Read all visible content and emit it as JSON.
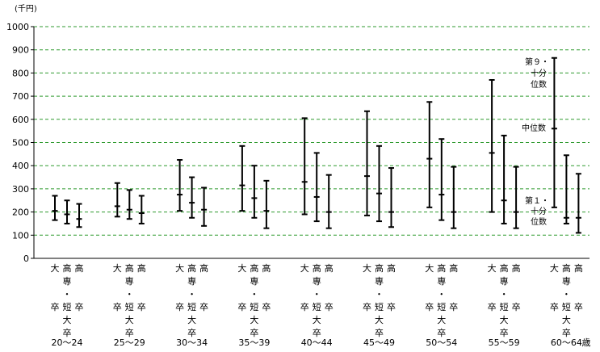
{
  "chart_data": {
    "type": "range",
    "unit_label": "(千円)",
    "age_suffix": "歳",
    "ylim": [
      0,
      1000
    ],
    "yticks": [
      0,
      100,
      200,
      300,
      400,
      500,
      600,
      700,
      800,
      900,
      1000
    ],
    "grid": true,
    "series_labels": [
      "大卒",
      "高専・短大卒",
      "高卒"
    ],
    "age_groups": [
      "20～24",
      "25～29",
      "30～34",
      "35～39",
      "40～44",
      "45～49",
      "50～54",
      "55～59",
      "60～64"
    ],
    "data": [
      [
        {
          "p10": 165,
          "median": 205,
          "p90": 270
        },
        {
          "p10": 150,
          "median": 190,
          "p90": 250
        },
        {
          "p10": 135,
          "median": 170,
          "p90": 235
        }
      ],
      [
        {
          "p10": 180,
          "median": 225,
          "p90": 325
        },
        {
          "p10": 170,
          "median": 210,
          "p90": 295
        },
        {
          "p10": 150,
          "median": 195,
          "p90": 270
        }
      ],
      [
        {
          "p10": 205,
          "median": 275,
          "p90": 425
        },
        {
          "p10": 175,
          "median": 240,
          "p90": 350
        },
        {
          "p10": 140,
          "median": 210,
          "p90": 305
        }
      ],
      [
        {
          "p10": 205,
          "median": 315,
          "p90": 485
        },
        {
          "p10": 175,
          "median": 260,
          "p90": 400
        },
        {
          "p10": 130,
          "median": 205,
          "p90": 335
        }
      ],
      [
        {
          "p10": 190,
          "median": 330,
          "p90": 605
        },
        {
          "p10": 160,
          "median": 265,
          "p90": 455
        },
        {
          "p10": 130,
          "median": 200,
          "p90": 360
        }
      ],
      [
        {
          "p10": 185,
          "median": 355,
          "p90": 635
        },
        {
          "p10": 160,
          "median": 280,
          "p90": 485
        },
        {
          "p10": 135,
          "median": 200,
          "p90": 390
        }
      ],
      [
        {
          "p10": 220,
          "median": 430,
          "p90": 675
        },
        {
          "p10": 165,
          "median": 275,
          "p90": 515
        },
        {
          "p10": 130,
          "median": 200,
          "p90": 395
        }
      ],
      [
        {
          "p10": 200,
          "median": 455,
          "p90": 770
        },
        {
          "p10": 150,
          "median": 250,
          "p90": 530
        },
        {
          "p10": 130,
          "median": 200,
          "p90": 395
        }
      ],
      [
        {
          "p10": 220,
          "median": 560,
          "p90": 865
        },
        {
          "p10": 150,
          "median": 175,
          "p90": 445
        },
        {
          "p10": 110,
          "median": 175,
          "p90": 365
        }
      ]
    ],
    "annotations": {
      "p90_lines": [
        "第９・",
        "十分",
        "位数"
      ],
      "median": "中位数",
      "p10_lines": [
        "第１・",
        "十分",
        "位数"
      ]
    }
  }
}
